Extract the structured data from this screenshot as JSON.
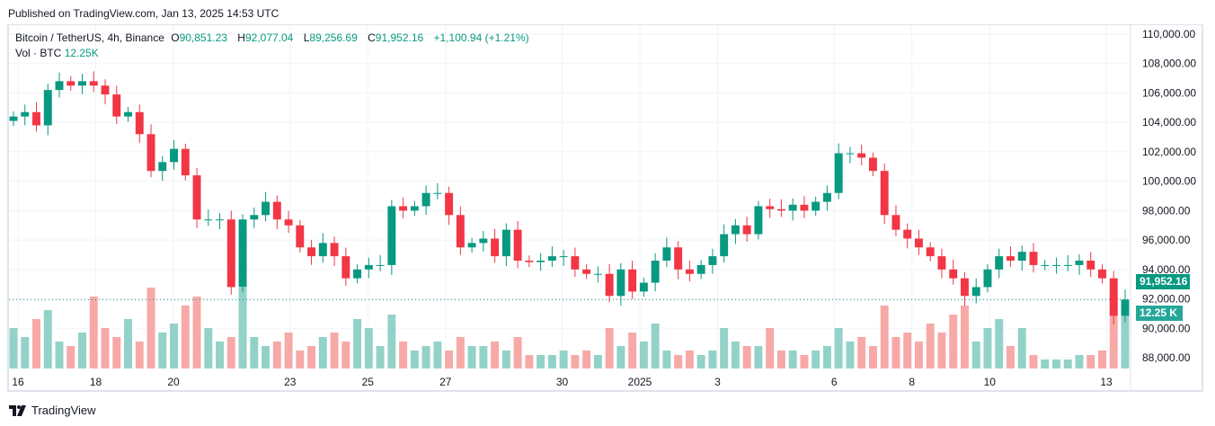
{
  "published": "Published on TradingView.com, Jan 13, 2025 14:53 UTC",
  "legend": {
    "symbol": "Bitcoin / TetherUS, 4h, Binance",
    "open_label": "O",
    "open": "90,851.23",
    "high_label": "H",
    "high": "92,077.04",
    "low_label": "L",
    "low": "89,256.69",
    "close_label": "C",
    "close": "91,952.16",
    "change": "+1,100.94 (+1.21%)"
  },
  "volume": {
    "label": "Vol · BTC",
    "value": "12.25K"
  },
  "price_tag": "91,952.16",
  "volume_tag": "12.25 K",
  "brand": "TradingView",
  "colors": {
    "up": "#089981",
    "down": "#f23645",
    "vol_up": "#92d2c8",
    "vol_down": "#f7a9a7",
    "tag": "#089981",
    "vol_tag": "#26a69a"
  },
  "chart_data": {
    "type": "candlestick",
    "y_axis_ticks": [
      "110,000.00",
      "108,000.00",
      "106,000.00",
      "104,000.00",
      "102,000.00",
      "100,000.00",
      "98,000.00",
      "96,000.00",
      "94,000.00",
      "92,000.00",
      "90,000.00",
      "88,000.00"
    ],
    "y_tick_values": [
      110000,
      108000,
      106000,
      104000,
      102000,
      100000,
      98000,
      96000,
      94000,
      92000,
      90000,
      88000
    ],
    "ylim": [
      87200,
      110800
    ],
    "x_axis_ticks": [
      {
        "label": "16",
        "day": 0
      },
      {
        "label": "18",
        "day": 2
      },
      {
        "label": "20",
        "day": 4
      },
      {
        "label": "23",
        "day": 7
      },
      {
        "label": "25",
        "day": 9
      },
      {
        "label": "27",
        "day": 11
      },
      {
        "label": "30",
        "day": 14
      },
      {
        "label": "2025",
        "day": 16
      },
      {
        "label": "3",
        "day": 18
      },
      {
        "label": "6",
        "day": 21
      },
      {
        "label": "8",
        "day": 23
      },
      {
        "label": "10",
        "day": 25
      },
      {
        "label": "13",
        "day": 28
      }
    ],
    "last_price": 91952.16,
    "closes": [
      104400,
      104700,
      103800,
      106200,
      106800,
      106500,
      106800,
      106500,
      105900,
      104400,
      104700,
      103200,
      100700,
      101300,
      102200,
      100400,
      97400,
      97400,
      97400,
      92800,
      97400,
      97700,
      98600,
      97400,
      97000,
      95500,
      94900,
      95800,
      94900,
      93400,
      94000,
      94300,
      94300,
      98300,
      98000,
      98300,
      99200,
      99200,
      97700,
      95500,
      95800,
      96100,
      94900,
      96700,
      94600,
      94500,
      94600,
      94900,
      94900,
      94000,
      93700,
      93700,
      92200,
      94000,
      92500,
      93100,
      94600,
      95500,
      94000,
      93700,
      94300,
      94900,
      96400,
      97000,
      96400,
      98300,
      98100,
      98000,
      98400,
      98000,
      98600,
      99200,
      101900,
      101900,
      101600,
      100700,
      97700,
      96700,
      96100,
      95500,
      94900,
      94000,
      93400,
      92200,
      92800,
      94000,
      94900,
      94600,
      95200,
      94300,
      94300,
      94300,
      94300,
      94600,
      94000,
      93400,
      90851.23,
      91952.16
    ],
    "volumes_k": [
      9,
      7,
      11,
      13,
      6,
      5,
      8,
      16,
      9,
      7,
      11,
      6,
      18,
      8,
      10,
      14,
      16,
      9,
      6,
      7,
      18,
      7,
      5,
      6,
      8,
      4,
      5,
      7,
      8,
      6,
      11,
      9,
      5,
      12,
      6,
      4,
      5,
      6,
      4,
      7,
      5,
      5,
      6,
      4,
      7,
      3,
      3,
      3,
      4,
      3,
      4,
      3,
      9,
      5,
      8,
      6,
      10,
      4,
      3,
      4,
      3,
      4,
      9,
      6,
      5,
      5,
      9,
      4,
      4,
      3,
      4,
      5,
      9,
      6,
      7,
      5,
      14,
      7,
      8,
      6,
      10,
      8,
      12,
      14,
      6,
      9,
      11,
      5,
      9,
      3,
      2,
      2,
      2,
      3,
      3,
      4,
      16,
      12.25
    ]
  }
}
